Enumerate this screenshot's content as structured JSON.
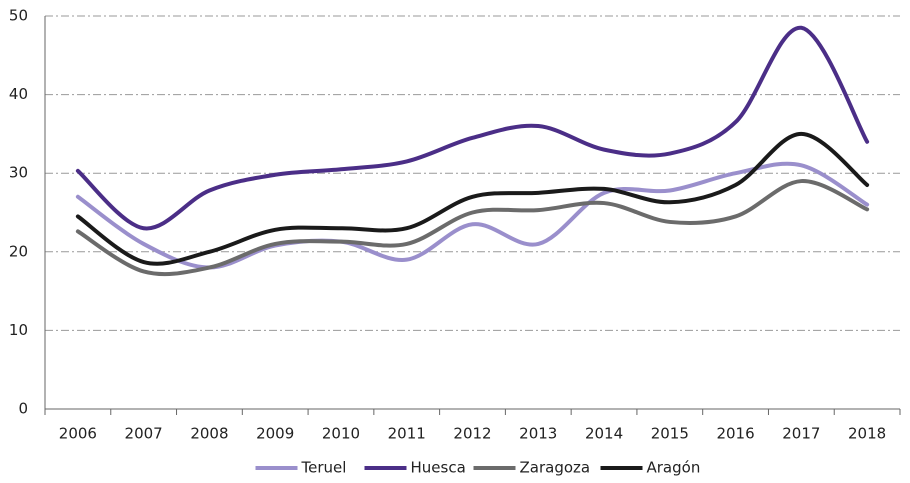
{
  "chart_data": {
    "type": "line",
    "categories": [
      "2006",
      "2007",
      "2008",
      "2009",
      "2010",
      "2011",
      "2012",
      "2013",
      "2014",
      "2015",
      "2016",
      "2017",
      "2018"
    ],
    "series": [
      {
        "name": "Teruel",
        "color": "#9a8fcc",
        "values": [
          27,
          21,
          18,
          20.8,
          21.3,
          19,
          23.5,
          21,
          27.5,
          27.8,
          30,
          31,
          26
        ]
      },
      {
        "name": "Huesca",
        "color": "#4b2e87",
        "values": [
          30.3,
          23,
          27.8,
          29.8,
          30.5,
          31.5,
          34.5,
          36,
          33,
          32.5,
          36.5,
          48.5,
          34
        ]
      },
      {
        "name": "Zaragoza",
        "color": "#6b6b6b",
        "values": [
          22.6,
          17.5,
          18,
          21,
          21.3,
          21,
          25,
          25.3,
          26.2,
          23.8,
          24.5,
          29,
          25.4
        ]
      },
      {
        "name": "Aragón",
        "color": "#1a1a1a",
        "values": [
          24.5,
          18.7,
          20,
          22.8,
          23,
          23,
          27,
          27.5,
          28,
          26.3,
          28.5,
          35,
          28.5
        ]
      }
    ],
    "ylim": [
      0,
      50
    ],
    "yticks": [
      0,
      10,
      20,
      30,
      40,
      50
    ],
    "grid": true,
    "legend": "bottom"
  }
}
